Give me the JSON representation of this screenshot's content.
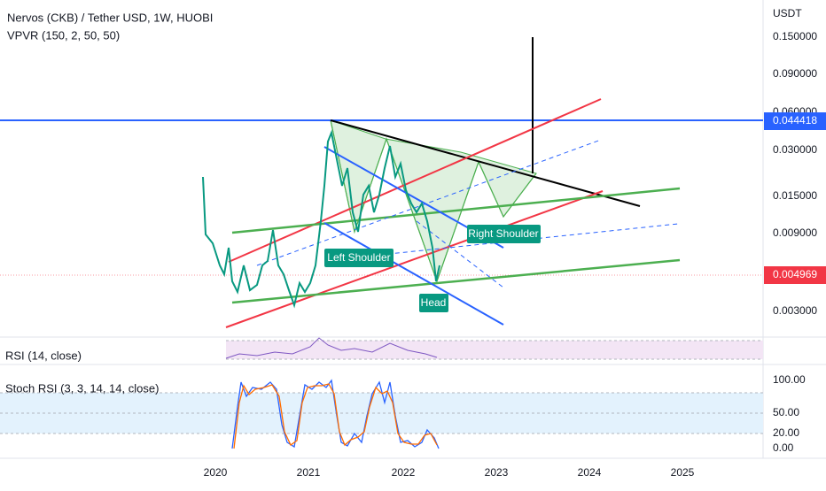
{
  "header": {
    "title": "Nervos (CKB) / Tether USD, 1W, HUOBI",
    "indicator": "VPVR (150, 2, 50, 50)"
  },
  "price_axis": {
    "unit": "USDT",
    "labels": [
      "0.150000",
      "0.090000",
      "0.060000",
      "0.030000",
      "0.015000",
      "0.009000",
      "0.003000"
    ],
    "level_marker": "0.044418",
    "last_price": "0.004969"
  },
  "annotations": {
    "left": "Left Shoulder",
    "right": "Right Shoulder",
    "head": "Head"
  },
  "rsi": {
    "label": "RSI (14, close)"
  },
  "stoch": {
    "label": "Stoch RSI (3, 3, 14, 14, close)",
    "axis": [
      "100.00",
      "50.00",
      "20.00",
      "0.00"
    ]
  },
  "time_axis": [
    "2020",
    "2021",
    "2022",
    "2023",
    "2024",
    "2025"
  ]
}
